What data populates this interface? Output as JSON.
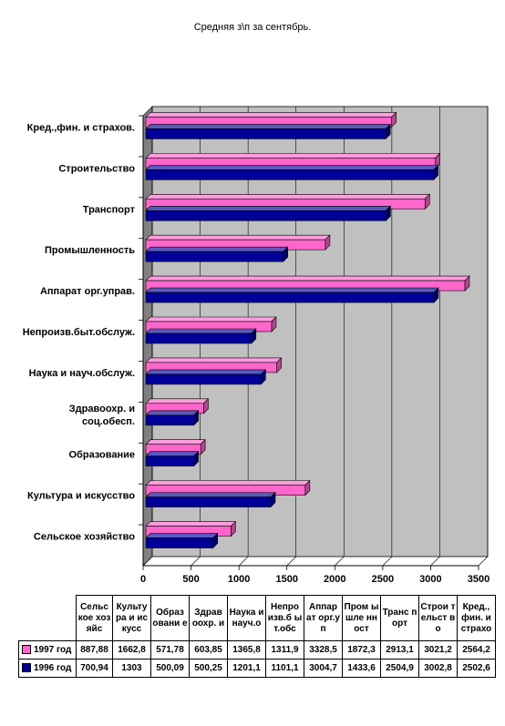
{
  "title": "Средняя з\\п за сентябрь.",
  "colors": {
    "s1997": "#ff66cc",
    "s1996": "#000099",
    "plot_wall": "#c0c0c0",
    "floor": "#808080"
  },
  "chart_data": {
    "type": "bar",
    "orientation": "horizontal",
    "three_d": true,
    "title": "Средняя з\\п за сентябрь.",
    "categories": [
      "Кред.,фин. и страхов.",
      "Строительство",
      "Транспорт",
      "Промышленность",
      "Аппарат орг.управ.",
      "Непроизв.быт.обслуж.",
      "Наука и науч.обслуж.",
      "Здравоохр. и соц.обесп.",
      "Образование",
      "Культура и искусство",
      "Сельское хозяйство"
    ],
    "series": [
      {
        "name": "1997 год",
        "color": "#ff66cc",
        "values": [
          2564.2,
          3021.2,
          2913.1,
          1872.3,
          3328.5,
          1311.9,
          1365.8,
          603.85,
          571.78,
          1662.8,
          887.88
        ]
      },
      {
        "name": "1996 год",
        "color": "#000099",
        "values": [
          2502.6,
          3002.8,
          2504.9,
          1433.6,
          3004.7,
          1101.1,
          1201.1,
          500.25,
          500.09,
          1303,
          700.94
        ]
      }
    ],
    "xlim": [
      0,
      3500
    ],
    "xticks": [
      "0",
      "500",
      "1000",
      "1500",
      "2000",
      "2500",
      "3000",
      "3500"
    ],
    "grid": true,
    "legend": "data-table-below"
  },
  "table": {
    "headers": [
      "Сельс кое хозяйс",
      "Культу ра и искусс",
      "Образ овани е",
      "Здрав оохр. и",
      "Наука и науч.о",
      "Непро изв.б ыт.обс",
      "Аппар ат орг.уп",
      "Пром ышле нност",
      "Транс порт",
      "Строи тельст во",
      "Кред., фин. и страхо"
    ],
    "rows": [
      {
        "label": "1997 год",
        "color": "#ff66cc",
        "values": [
          "887,88",
          "1662,8",
          "571,78",
          "603,85",
          "1365,8",
          "1311,9",
          "3328,5",
          "1872,3",
          "2913,1",
          "3021,2",
          "2564,2"
        ]
      },
      {
        "label": "1996 год",
        "color": "#000099",
        "values": [
          "700,94",
          "1303",
          "500,09",
          "500,25",
          "1201,1",
          "1101,1",
          "3004,7",
          "1433,6",
          "2504,9",
          "3002,8",
          "2502,6"
        ]
      }
    ]
  }
}
